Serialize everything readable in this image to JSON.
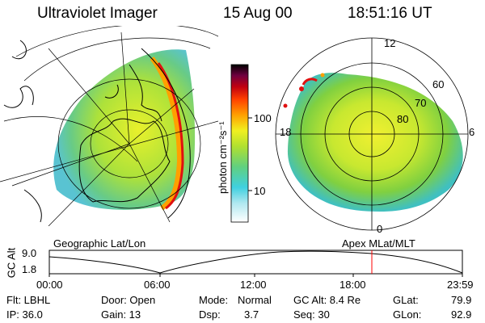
{
  "header": {
    "instrument": "Ultraviolet Imager",
    "date": "15 Aug 00",
    "time": "18:51:16 UT"
  },
  "left_panel": {
    "label": "Geographic Lat/Lon"
  },
  "right_panel": {
    "label": "Apex MLat/MLT",
    "mlt_labels": [
      "12",
      "18",
      "6",
      "0"
    ],
    "mlat_labels": [
      "60",
      "70",
      "80"
    ]
  },
  "colorbar": {
    "unit_label": "photon cm⁻²s⁻¹",
    "tick_labels": [
      "100",
      "10"
    ]
  },
  "altitude_plot": {
    "ylabel": "GC Alt",
    "y_ticks": [
      "9.0",
      "1.8"
    ],
    "x_ticks": [
      "00:00",
      "06:00",
      "12:00",
      "18:00",
      "23:59"
    ],
    "current_time_marker": "18:51"
  },
  "status": {
    "filter": "Flt: LBHL",
    "ip": "IP: 36.0",
    "door": "Door: Open",
    "gain": "Gain: 13",
    "mode_label": "Mode:",
    "mode_value": "Normal",
    "dsp_label": "Dsp:",
    "dsp_value": "3.7",
    "gc_alt": "GC Alt: 8.4 Re",
    "seq": "Seq: 30",
    "glat_label": "GLat:",
    "glat_value": "79.9",
    "glon_label": "GLon:",
    "glon_value": "92.9"
  },
  "colors": {
    "marker": "#ff0000",
    "colorscale": [
      "#ffffff",
      "#40d0e0",
      "#9be030",
      "#e8f020",
      "#ffa000",
      "#e01010",
      "#800020",
      "#000000"
    ]
  }
}
